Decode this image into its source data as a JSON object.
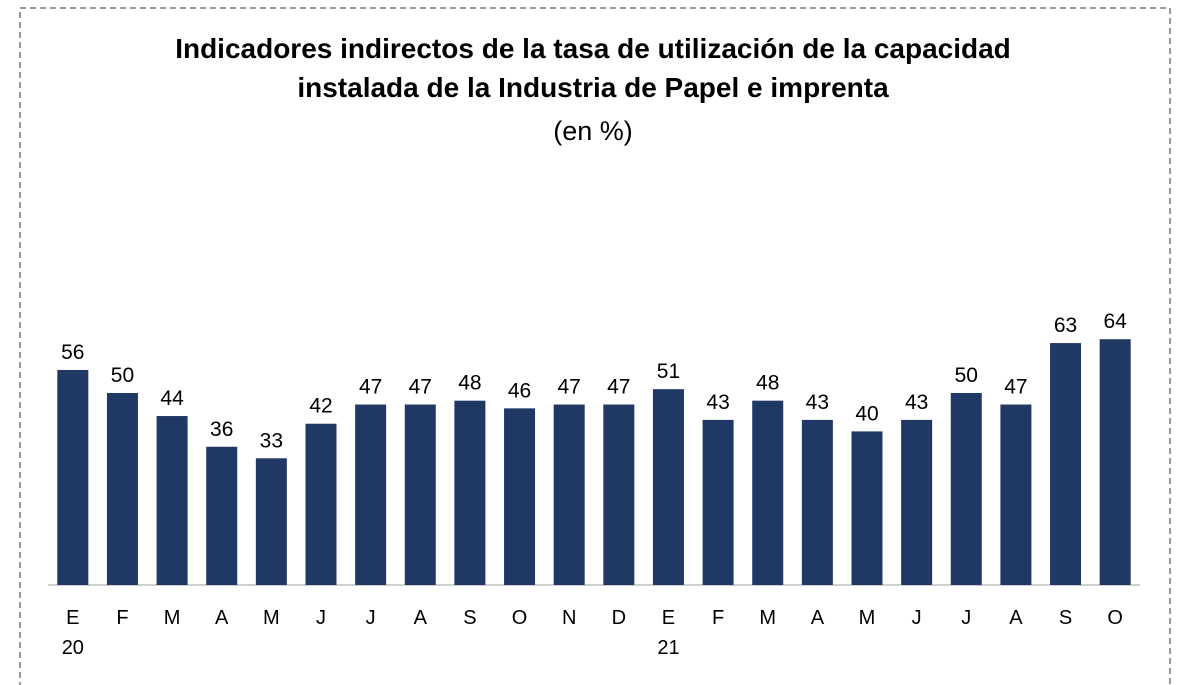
{
  "chart_data": {
    "type": "bar",
    "title": [
      "Indicadores indirectos de la tasa de utilización de la capacidad",
      "instalada de la Industria de Papel e imprenta"
    ],
    "subtitle": "(en %)",
    "categories": [
      "E\n20",
      "F",
      "M",
      "A",
      "M",
      "J",
      "J",
      "A",
      "S",
      "O",
      "N",
      "D",
      "E\n21",
      "F",
      "M",
      "A",
      "M",
      "J",
      "J",
      "A",
      "S",
      "O"
    ],
    "values": [
      56,
      50,
      44,
      36,
      33,
      42,
      47,
      47,
      48,
      46,
      47,
      47,
      51,
      43,
      48,
      43,
      40,
      43,
      50,
      47,
      63,
      64
    ],
    "color": "#1f3864"
  }
}
